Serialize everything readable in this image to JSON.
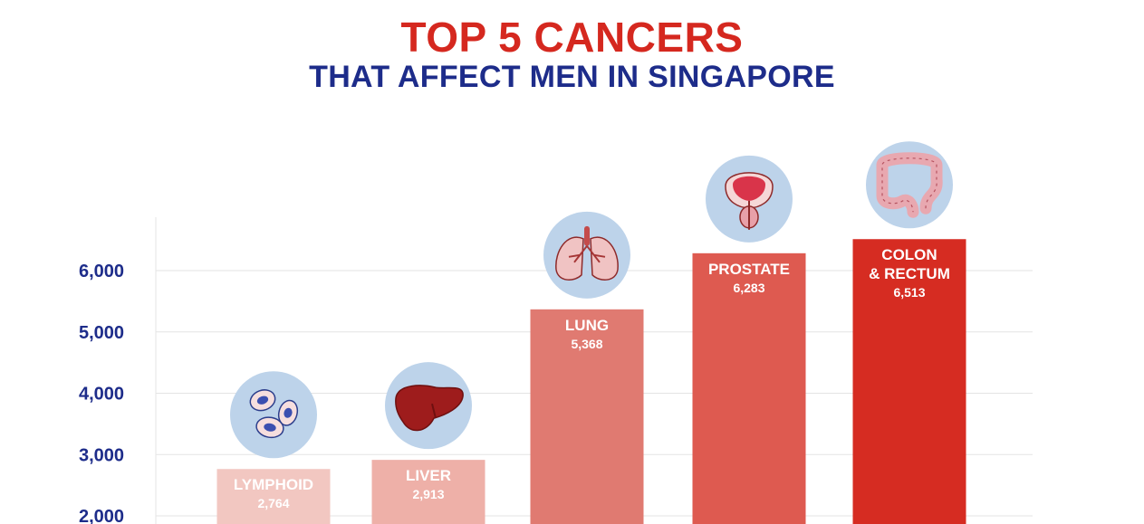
{
  "title": "TOP 5 CANCERS",
  "subtitle": "THAT AFFECT MEN IN SINGAPORE",
  "colors": {
    "title": "#d5281f",
    "subtitle": "#1d2c8a",
    "axis_text": "#1d2c8a",
    "icon_circle": "#bdd3ea",
    "grid": "#e3e3e3"
  },
  "chart_data": {
    "type": "bar",
    "categories": [
      "LYMPHOID",
      "LIVER",
      "LUNG",
      "PROSTATE",
      "COLON\n& RECTUM"
    ],
    "values": [
      2764,
      2913,
      5368,
      6283,
      6513
    ],
    "value_labels": [
      "2,764",
      "2,913",
      "5,368",
      "6,283",
      "6,513"
    ],
    "bar_colors": [
      "#f2c7c1",
      "#eeb0a8",
      "#e07a71",
      "#de5a50",
      "#d62c22"
    ],
    "icons": [
      "blood-cells-icon",
      "liver-icon",
      "lungs-icon",
      "prostate-icon",
      "colon-icon"
    ],
    "yticks": [
      2000,
      3000,
      4000,
      5000,
      6000
    ],
    "ytick_labels": [
      "2,000",
      "3,000",
      "4,000",
      "5,000",
      "6,000"
    ],
    "ylim": [
      2000,
      6900
    ],
    "grid": true,
    "legend": "none",
    "xlabel": "",
    "ylabel": ""
  }
}
